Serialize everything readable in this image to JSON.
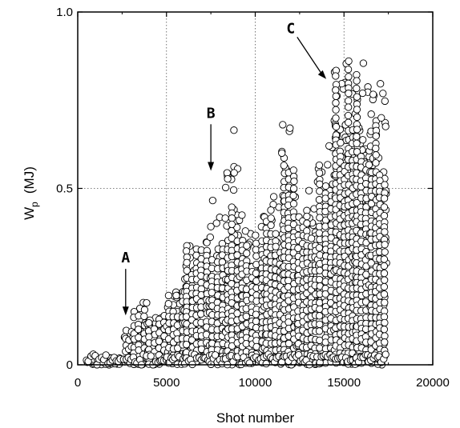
{
  "chart_data": {
    "type": "scatter",
    "title": "",
    "xlabel": "Shot number",
    "ylabel": "W",
    "ylabel_subscript": "p",
    "ylabel_unit": "(MJ)",
    "xlim": [
      0,
      20000
    ],
    "ylim": [
      0,
      1.0
    ],
    "x_ticks": [
      0,
      5000,
      10000,
      15000,
      20000
    ],
    "x_tick_labels": [
      "0",
      "5000",
      "10000",
      "15000",
      "20000"
    ],
    "y_ticks": [
      0,
      0.5,
      1.0
    ],
    "y_tick_labels": [
      "0",
      "0.5",
      "1.0"
    ],
    "grid": "dotted lines at x = 5000, 10000, 15000 and y = 0.5",
    "marker": "open circle",
    "clusters": [
      {
        "x_range": [
          500,
          2500
        ],
        "y_max": 0.02
      },
      {
        "x_range": [
          2600,
          3000
        ],
        "y_max": 0.1
      },
      {
        "x_range": [
          3000,
          3900
        ],
        "y_max": 0.19
      },
      {
        "x_range": [
          3900,
          5000
        ],
        "y_max": 0.15
      },
      {
        "x_range": [
          5000,
          6000
        ],
        "y_max": 0.21
      },
      {
        "x_range": [
          6000,
          7400
        ],
        "y_max": 0.36
      },
      {
        "x_range": [
          7400,
          8300
        ],
        "y_max": 0.47
      },
      {
        "x_range": [
          8300,
          9100
        ],
        "y_max": 0.57
      },
      {
        "x_range": [
          9100,
          10500
        ],
        "y_max": 0.43
      },
      {
        "x_range": [
          10500,
          11500
        ],
        "y_max": 0.5
      },
      {
        "x_range": [
          11500,
          12300
        ],
        "y_max": 0.69
      },
      {
        "x_range": [
          12300,
          13500
        ],
        "y_max": 0.5
      },
      {
        "x_range": [
          13500,
          14400
        ],
        "y_max": 0.63
      },
      {
        "x_range": [
          14400,
          15600
        ],
        "y_max": 0.87
      },
      {
        "x_range": [
          15600,
          16400
        ],
        "y_max": 0.86
      },
      {
        "x_range": [
          16400,
          17400
        ],
        "y_max": 0.83
      }
    ],
    "isolated_points": [
      {
        "x": 8800,
        "y": 0.665
      },
      {
        "x": 11500,
        "y": 0.6
      },
      {
        "x": 17100,
        "y": 0.7
      }
    ],
    "annotations": [
      {
        "text": "A",
        "label_x": 2700,
        "label_y": 0.29,
        "arrow_to_x": 2700,
        "arrow_to_y": 0.14
      },
      {
        "text": "B",
        "label_x": 7500,
        "label_y": 0.7,
        "arrow_to_x": 7500,
        "arrow_to_y": 0.55
      },
      {
        "text": "C",
        "label_x": 12000,
        "label_y": 0.94,
        "arrow_to_x": 14000,
        "arrow_to_y": 0.81
      }
    ]
  }
}
